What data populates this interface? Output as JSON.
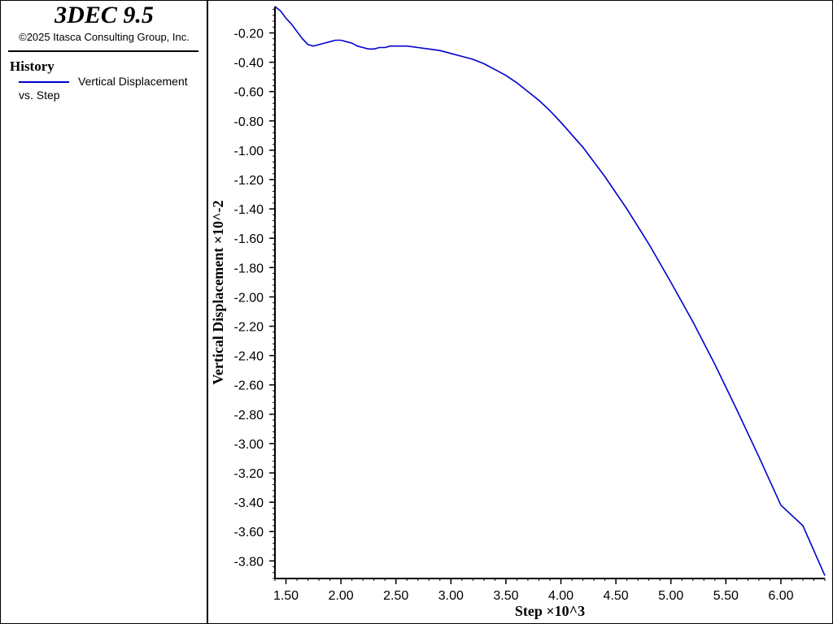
{
  "app": {
    "title": "3DEC 9.5",
    "copyright": "©2025 Itasca Consulting Group, Inc."
  },
  "legend": {
    "heading": "History",
    "series_name": "Vertical Displacement",
    "series_suffix": "vs. Step"
  },
  "colors": {
    "series": "#0000cc",
    "frame": "#000000",
    "background": "#ffffff"
  },
  "chart_data": {
    "type": "line",
    "xlabel": "Step ×10^3",
    "ylabel": "Vertical Displacement ×10^-2",
    "xlim": [
      1.4,
      6.4
    ],
    "ylim": [
      -3.92,
      -0.02
    ],
    "x_ticks": [
      "1.50",
      "2.00",
      "2.50",
      "3.00",
      "3.50",
      "4.00",
      "4.50",
      "5.00",
      "5.50",
      "6.00"
    ],
    "y_ticks": [
      "-0.20",
      "-0.40",
      "-0.60",
      "-0.80",
      "-1.00",
      "-1.20",
      "-1.40",
      "-1.60",
      "-1.80",
      "-2.00",
      "-2.20",
      "-2.40",
      "-2.60",
      "-2.80",
      "-3.00",
      "-3.20",
      "-3.40",
      "-3.60",
      "-3.80"
    ],
    "grid": false,
    "series": [
      {
        "x": [
          1.4,
          1.45,
          1.5,
          1.55,
          1.6,
          1.65,
          1.7,
          1.75,
          1.8,
          1.85,
          1.9,
          1.95,
          2.0,
          2.05,
          2.1,
          2.15,
          2.2,
          2.25,
          2.3,
          2.35,
          2.4,
          2.45,
          2.5,
          2.55,
          2.6,
          2.7,
          2.8,
          2.9,
          3.0,
          3.1,
          3.2,
          3.3,
          3.4,
          3.5,
          3.6,
          3.7,
          3.8,
          3.9,
          4.0,
          4.2,
          4.4,
          4.6,
          4.8,
          5.0,
          5.2,
          5.4,
          5.6,
          5.8,
          6.0,
          6.2,
          6.4
        ],
        "values": [
          -0.02,
          -0.05,
          -0.1,
          -0.14,
          -0.19,
          -0.24,
          -0.28,
          -0.29,
          -0.28,
          -0.27,
          -0.26,
          -0.25,
          -0.25,
          -0.26,
          -0.27,
          -0.29,
          -0.3,
          -0.31,
          -0.31,
          -0.3,
          -0.3,
          -0.29,
          -0.29,
          -0.29,
          -0.29,
          -0.3,
          -0.31,
          -0.32,
          -0.34,
          -0.36,
          -0.38,
          -0.41,
          -0.45,
          -0.49,
          -0.54,
          -0.6,
          -0.66,
          -0.73,
          -0.81,
          -0.98,
          -1.18,
          -1.4,
          -1.64,
          -1.9,
          -2.17,
          -2.46,
          -2.77,
          -3.09,
          -3.42,
          -3.56,
          -3.9
        ]
      }
    ]
  }
}
